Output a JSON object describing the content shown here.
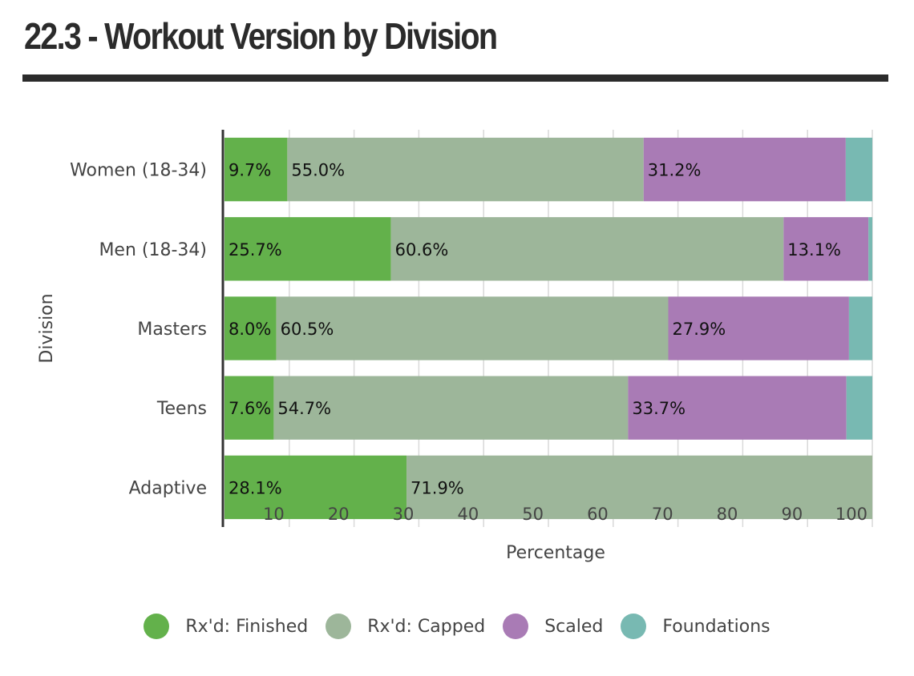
{
  "title": "22.3 - Workout Version by Division",
  "colors": {
    "rxd_finished": "#63b14b",
    "rxd_capped": "#9db69a",
    "scaled": "#a97bb5",
    "foundations": "#78b9b2",
    "axis": "#333333",
    "grid": "#d9d9d9",
    "text": "#444444"
  },
  "chart_data": {
    "type": "bar",
    "orientation": "horizontal",
    "stacked": true,
    "ylabel": "Division",
    "xlabel": "Percentage",
    "xlim": [
      0,
      100
    ],
    "xticks": [
      10,
      20,
      30,
      40,
      50,
      60,
      70,
      80,
      90,
      100
    ],
    "grid": true,
    "legend_position": "bottom",
    "categories": [
      "Women (18-34)",
      "Men (18-34)",
      "Masters",
      "Teens",
      "Adaptive"
    ],
    "series": [
      {
        "name": "Rx'd: Finished",
        "color": "#63b14b",
        "values": [
          9.7,
          25.7,
          8.0,
          7.6,
          28.1
        ],
        "labels": [
          "9.7%",
          "25.7%",
          "8.0%",
          "7.6%",
          "28.1%"
        ]
      },
      {
        "name": "Rx'd: Capped",
        "color": "#9db69a",
        "values": [
          55.0,
          60.6,
          60.5,
          54.7,
          71.9
        ],
        "labels": [
          "55.0%",
          "60.6%",
          "60.5%",
          "54.7%",
          "71.9%"
        ]
      },
      {
        "name": "Scaled",
        "color": "#a97bb5",
        "values": [
          31.2,
          13.1,
          27.9,
          33.7,
          0
        ],
        "labels": [
          "31.2%",
          "13.1%",
          "27.9%",
          "33.7%",
          ""
        ]
      },
      {
        "name": "Foundations",
        "color": "#78b9b2",
        "values": [
          4.1,
          0.6,
          3.6,
          4.0,
          0
        ],
        "labels": [
          "",
          "",
          "",
          "",
          ""
        ]
      }
    ]
  }
}
